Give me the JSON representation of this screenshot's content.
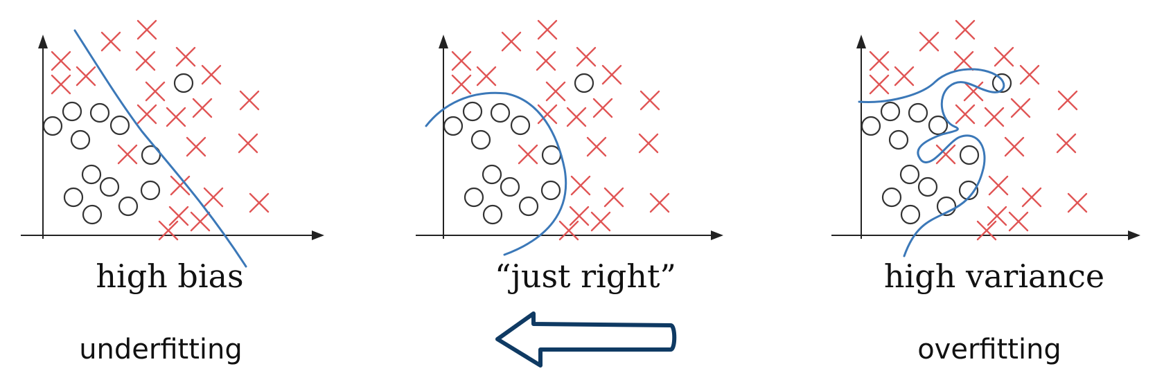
{
  "panels": [
    {
      "id": "left",
      "title": "high bias",
      "fit_label": "underfitting"
    },
    {
      "id": "middle",
      "title": "“just right”",
      "fit_label": ""
    },
    {
      "id": "right",
      "title": "high variance",
      "fit_label": "overfitting"
    }
  ],
  "colors": {
    "cross": "#e05555",
    "circle": "#333333",
    "boundary": "#3b78b8",
    "arrow": "#0f3a63"
  },
  "arrow": {
    "direction": "left"
  }
}
